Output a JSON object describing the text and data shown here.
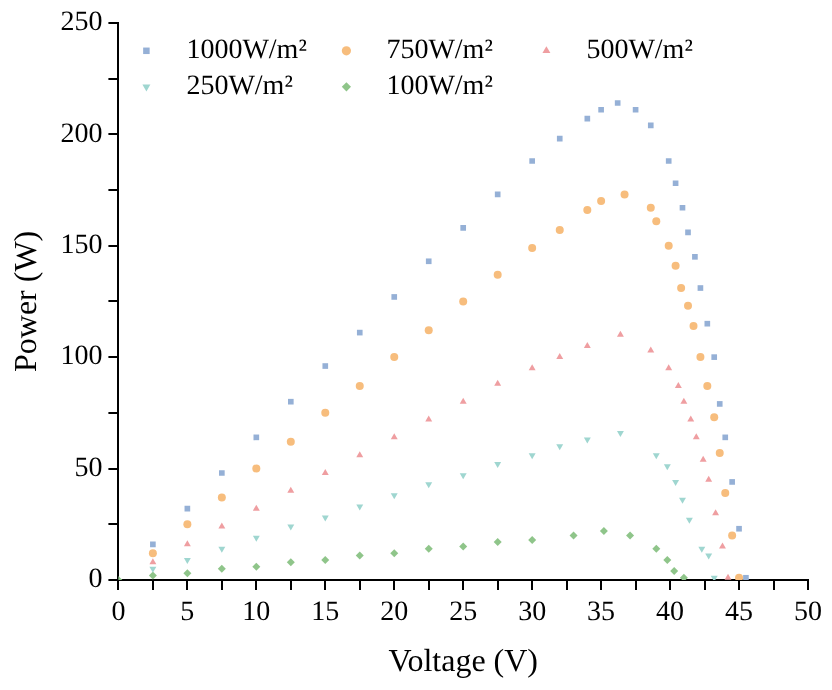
{
  "chart_data": {
    "type": "scatter",
    "xlabel": "Voltage (V)",
    "ylabel": "Power (W)",
    "xlim": [
      0,
      50
    ],
    "ylim": [
      0,
      250
    ],
    "xticks": [
      0,
      {
        "value": 2.5,
        "label": null
      },
      5,
      {
        "value": 7.5,
        "label": null
      },
      10,
      {
        "value": 12.5,
        "label": null
      },
      15,
      {
        "value": 17.5,
        "label": null
      },
      20,
      {
        "value": 22.5,
        "label": null
      },
      25,
      {
        "value": 27.5,
        "label": null
      },
      30,
      {
        "value": 32.5,
        "label": null
      },
      35,
      {
        "value": 37.5,
        "label": null
      },
      40,
      {
        "value": 42.5,
        "label": null
      },
      45,
      {
        "value": 47.5,
        "label": null
      },
      50
    ],
    "yticks": [
      0,
      {
        "value": 25,
        "label": null
      },
      50,
      {
        "value": 75,
        "label": null
      },
      100,
      {
        "value": 125,
        "label": null
      },
      150,
      {
        "value": 175,
        "label": null
      },
      200,
      {
        "value": 225,
        "label": null
      },
      250
    ],
    "grid": false,
    "legend": "top left",
    "series": [
      {
        "name": "1000W/m²",
        "color": "#95b0d6",
        "marker": "square",
        "x": [
          2.5,
          5,
          7.5,
          10,
          12.5,
          15,
          17.5,
          20,
          22.5,
          25,
          27.5,
          30,
          32,
          34,
          35,
          36.2,
          37.5,
          38.6,
          39.9,
          40.4,
          40.9,
          41.3,
          41.8,
          42.2,
          42.7,
          43.2,
          43.6,
          44.0,
          44.5,
          45.0,
          45.5
        ],
        "values": [
          16,
          32,
          48,
          64,
          80,
          96,
          111,
          127,
          143,
          158,
          173,
          188,
          198,
          207,
          211,
          214,
          211,
          204,
          188,
          178,
          167,
          156,
          145,
          131,
          115,
          100,
          79,
          64,
          44,
          23,
          1
        ]
      },
      {
        "name": "750W/m²",
        "color": "#f7bd7d",
        "marker": "circle",
        "x": [
          2.5,
          5,
          7.5,
          10,
          12.5,
          15,
          17.5,
          20,
          22.5,
          25,
          27.5,
          30,
          32,
          34,
          35,
          36.7,
          38.6,
          39.0,
          39.9,
          40.4,
          40.8,
          41.3,
          41.7,
          42.2,
          42.7,
          43.2,
          43.6,
          44.0,
          44.5,
          45.0
        ],
        "values": [
          12,
          25,
          37,
          50,
          62,
          75,
          87,
          100,
          112,
          125,
          137,
          149,
          157,
          166,
          170,
          173,
          167,
          161,
          150,
          141,
          131,
          123,
          114,
          100,
          87,
          73,
          57,
          39,
          20,
          1
        ]
      },
      {
        "name": "500W/m²",
        "color": "#ef9ea1",
        "marker": "triangle",
        "x": [
          2.5,
          5,
          7.5,
          10,
          12.5,
          15,
          17.5,
          20,
          22.5,
          25,
          27.5,
          30,
          32,
          34,
          36.4,
          38.6,
          39.9,
          40.6,
          41.0,
          41.5,
          41.9,
          42.4,
          42.8,
          43.3,
          43.8,
          44.2
        ],
        "values": [
          8,
          16,
          24,
          32,
          40,
          48,
          56,
          64,
          72,
          80,
          88,
          95,
          100,
          105,
          110,
          103,
          95,
          87,
          80,
          72,
          64,
          54,
          45,
          30,
          15,
          1
        ]
      },
      {
        "name": "250W/m²",
        "color": "#9fd6d0",
        "marker": "triangle-down",
        "x": [
          2.5,
          5,
          7.5,
          10,
          12.5,
          15,
          17.5,
          20,
          22.5,
          25,
          27.5,
          30,
          32,
          34,
          36.4,
          39.0,
          39.8,
          40.4,
          40.9,
          41.4,
          42.3,
          42.8,
          43.2
        ],
        "values": [
          5,
          9,
          14,
          19,
          24,
          28,
          33,
          38,
          43,
          47,
          52,
          56,
          60,
          63,
          66,
          56,
          51,
          44,
          36,
          27,
          14,
          11,
          1
        ]
      },
      {
        "name": "100W/m²",
        "color": "#8fc58a",
        "marker": "diamond",
        "x": [
          0,
          2.5,
          5,
          7.5,
          10,
          12.5,
          15,
          17.5,
          20,
          22.5,
          25,
          27.5,
          30,
          33,
          35.2,
          37.1,
          39.0,
          39.8,
          40.3,
          41.0
        ],
        "values": [
          0,
          2,
          3,
          5,
          6,
          8,
          9,
          11,
          12,
          14,
          15,
          17,
          18,
          20,
          22,
          20,
          14,
          9,
          4,
          1
        ]
      }
    ]
  }
}
